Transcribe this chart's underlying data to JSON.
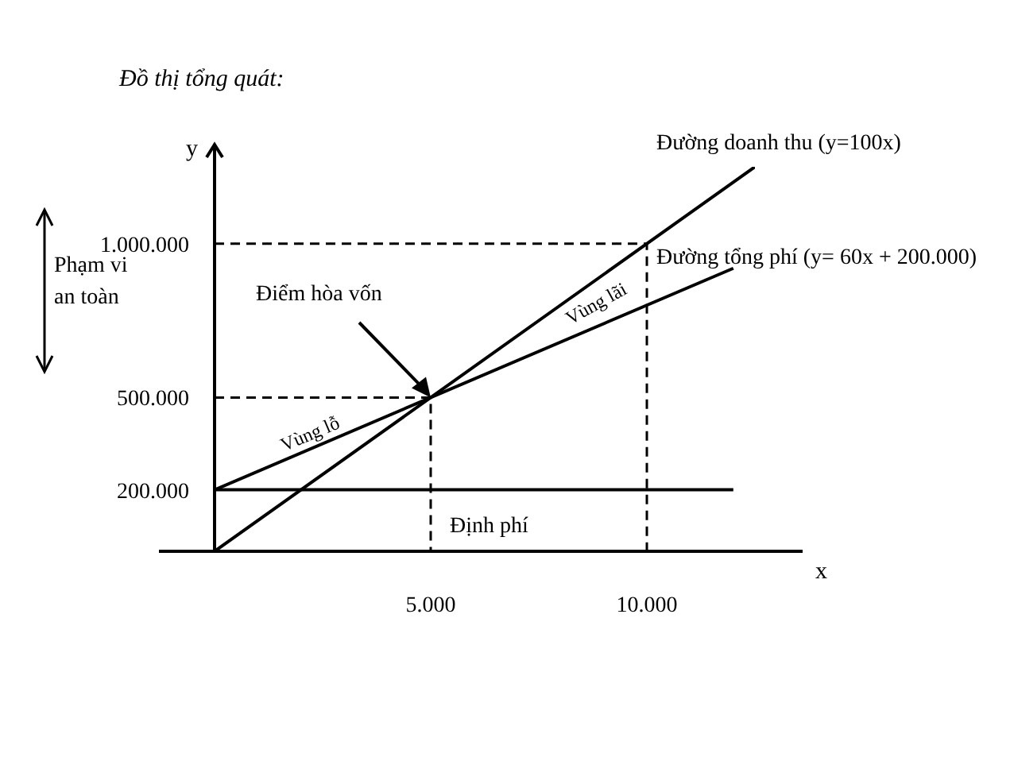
{
  "chart_data": {
    "type": "line",
    "title": "Đồ thị tổng quát:",
    "xlabel": "x",
    "ylabel": "y",
    "xlim": [
      0,
      12500
    ],
    "ylim": [
      0,
      1250000
    ],
    "xticks": [
      {
        "value": 5000,
        "label": "5.000"
      },
      {
        "value": 10000,
        "label": "10.000"
      }
    ],
    "yticks": [
      {
        "value": 200000,
        "label": "200.000"
      },
      {
        "value": 500000,
        "label": "500.000"
      },
      {
        "value": 1000000,
        "label": "1.000.000"
      }
    ],
    "series": [
      {
        "name": "Đường doanh thu (y=100x)",
        "color": "#000000",
        "x": [
          0,
          12500
        ],
        "values": [
          0,
          1250000
        ]
      },
      {
        "name": "Đường tổng phí (y= 60x + 200.000)",
        "color": "#000000",
        "x": [
          0,
          12000
        ],
        "values": [
          200000,
          920000
        ]
      },
      {
        "name": "Định phí",
        "color": "#000000",
        "x": [
          0,
          12000
        ],
        "values": [
          200000,
          200000
        ]
      },
      {
        "color": "#000000",
        "line_style": "dashed",
        "x": [
          0,
          5000,
          5000
        ],
        "values": [
          500000,
          500000,
          0
        ]
      },
      {
        "color": "#000000",
        "line_style": "dashed",
        "x": [
          0,
          10000,
          10000
        ],
        "values": [
          1000000,
          1000000,
          0
        ]
      }
    ],
    "annotations": [
      "Vùng lỗ",
      "Vùng lãi",
      {
        "text": "Điểm hòa vốn",
        "x": 5000,
        "y": 500000
      },
      "Phạm vi an toàn"
    ],
    "grid": false,
    "legend": false,
    "marker": "none",
    "line_style": "solid"
  }
}
